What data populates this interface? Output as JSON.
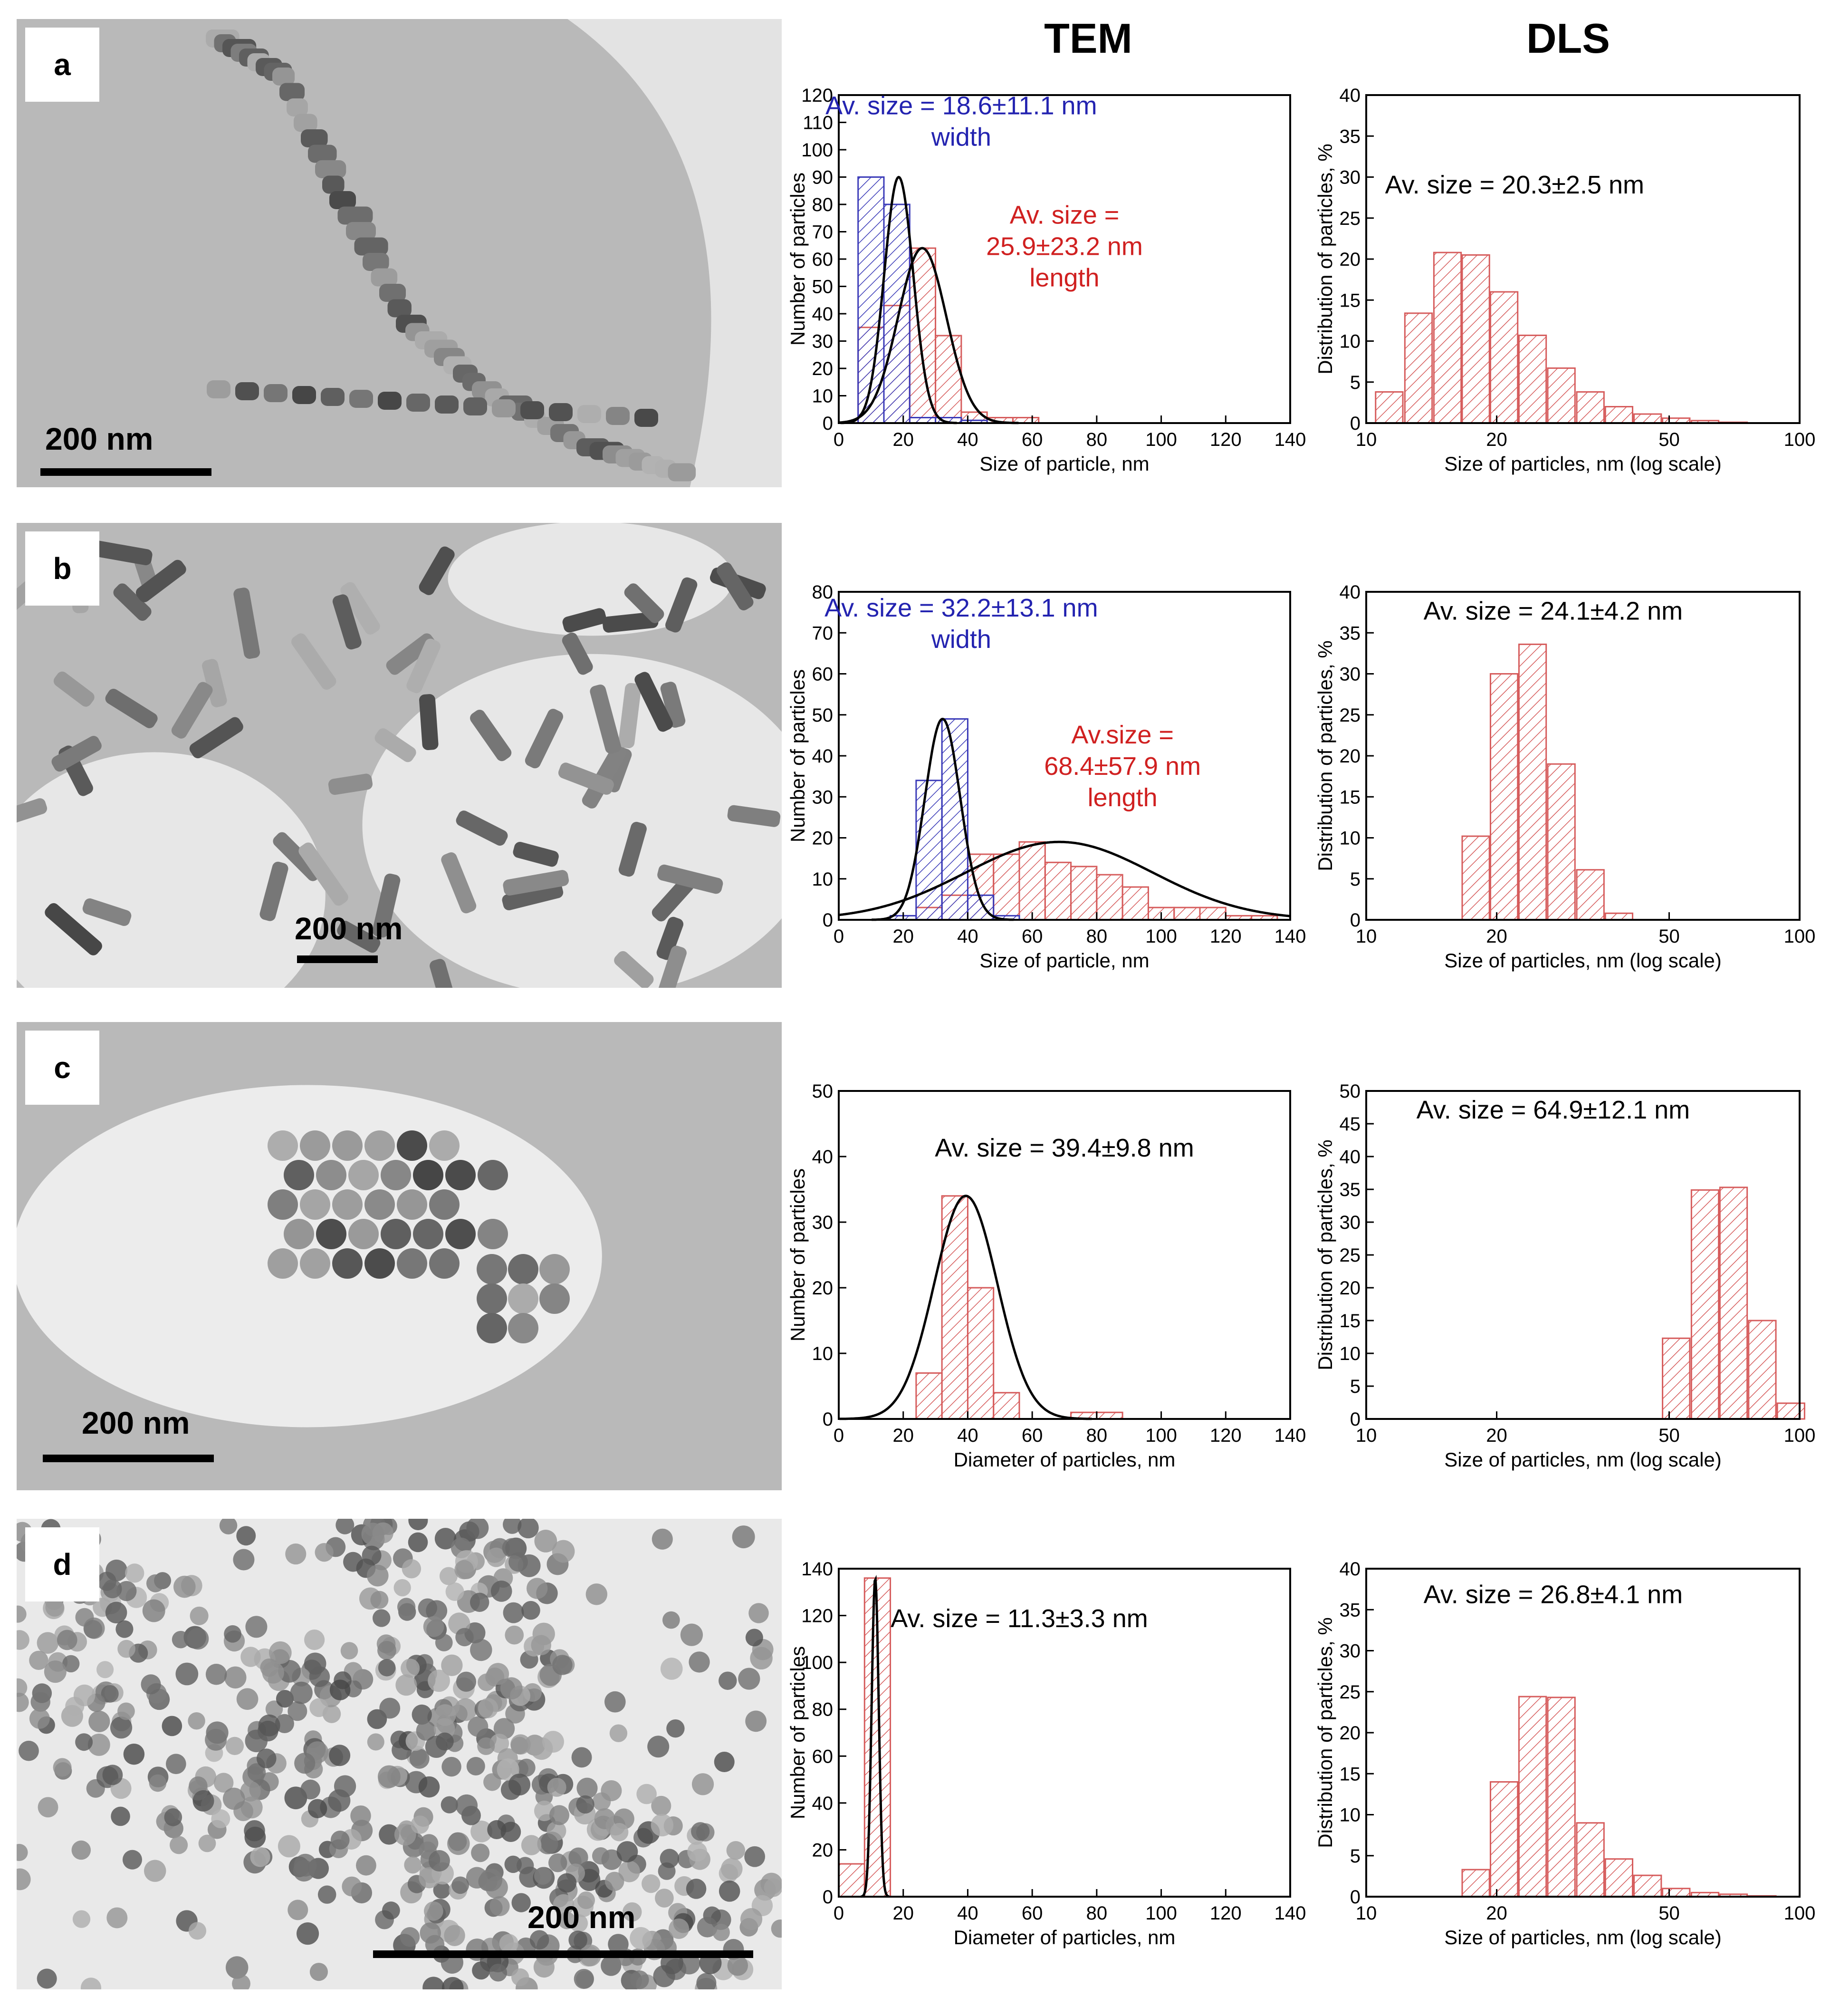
{
  "headers": {
    "tem": "TEM",
    "dls": "DLS"
  },
  "colors": {
    "tem_bar": "#d65c5c",
    "width_bar": "#3a3ab8",
    "annot_blue": "#2323b0",
    "annot_red": "#d02020",
    "fit": "#000000"
  },
  "panels": [
    {
      "label": "a",
      "scale_text": "200 nm"
    },
    {
      "label": "b",
      "scale_text": "200 nm"
    },
    {
      "label": "c",
      "scale_text": "200 nm"
    },
    {
      "label": "d",
      "scale_text": "200 nm"
    }
  ],
  "chart_data": [
    {
      "id": "a-tem",
      "type": "bar",
      "xscale": "linear",
      "xlim": [
        0,
        140
      ],
      "ylim": [
        0,
        120
      ],
      "xticks": [
        0,
        20,
        40,
        60,
        80,
        100,
        120,
        140
      ],
      "yticks": [
        0,
        10,
        20,
        30,
        40,
        50,
        60,
        70,
        80,
        90,
        100,
        110,
        120
      ],
      "xlabel": "Size of particle, nm",
      "ylabel": "Number of particles",
      "series": [
        {
          "name": "length",
          "color": "red",
          "bin_width": 8,
          "x": [
            10,
            18,
            26,
            34,
            42,
            50,
            58
          ],
          "values": [
            35,
            43,
            64,
            32,
            4,
            2,
            2
          ]
        },
        {
          "name": "width",
          "color": "blue",
          "bin_width": 8,
          "x": [
            10,
            18,
            26,
            34,
            42
          ],
          "values": [
            90,
            80,
            2,
            2,
            1
          ]
        }
      ],
      "fits": [
        {
          "mean": 18.6,
          "sd": 4.5,
          "amp": 90
        },
        {
          "mean": 25.9,
          "sd": 7.5,
          "amp": 64
        }
      ],
      "annotations": [
        {
          "lines": [
            "Av. size = 18.6±11.1 nm",
            "width"
          ],
          "color": "blue",
          "x": 38,
          "y": 113
        },
        {
          "lines": [
            "Av. size =",
            "25.9±23.2 nm",
            "length"
          ],
          "color": "red",
          "x": 70,
          "y": 73
        }
      ]
    },
    {
      "id": "a-dls",
      "type": "bar",
      "xscale": "log",
      "xlim": [
        10,
        100
      ],
      "ylim": [
        0,
        40
      ],
      "xticks": [
        10,
        20,
        50,
        100
      ],
      "yticks": [
        0,
        5,
        10,
        15,
        20,
        25,
        30,
        35,
        40
      ],
      "xlabel": "Size of particles, nm (log scale)",
      "ylabel": "Distribution of particles, %",
      "series": [
        {
          "name": "DLS",
          "color": "red",
          "x": [
            11.3,
            13.2,
            15.4,
            17.9,
            20.8,
            24.2,
            28.2,
            32.9,
            38.3,
            44.6,
            51.9,
            60.5,
            70.4
          ],
          "values": [
            3.8,
            13.4,
            20.8,
            20.5,
            16.0,
            10.7,
            6.7,
            3.8,
            2.0,
            1.1,
            0.6,
            0.3,
            0.1
          ]
        }
      ],
      "annotations": [
        {
          "lines": [
            "Av. size = 20.3±2.5 nm"
          ],
          "color": "black",
          "x": 22,
          "y": 28
        }
      ]
    },
    {
      "id": "b-tem",
      "type": "bar",
      "xscale": "linear",
      "xlim": [
        0,
        140
      ],
      "ylim": [
        0,
        80
      ],
      "xticks": [
        0,
        20,
        40,
        60,
        80,
        100,
        120,
        140
      ],
      "yticks": [
        0,
        10,
        20,
        30,
        40,
        50,
        60,
        70,
        80
      ],
      "xlabel": "Size of particle, nm",
      "ylabel": "Number of particles",
      "series": [
        {
          "name": "length",
          "color": "red",
          "bin_width": 8,
          "x": [
            28,
            36,
            44,
            52,
            60,
            68,
            76,
            84,
            92,
            100,
            108,
            116,
            124,
            132
          ],
          "values": [
            3,
            6,
            16,
            16,
            19,
            14,
            13,
            11,
            8,
            3,
            3,
            3,
            1,
            1
          ]
        },
        {
          "name": "width",
          "color": "blue",
          "bin_width": 8,
          "x": [
            20,
            28,
            36,
            44,
            52
          ],
          "values": [
            1,
            34,
            49,
            6,
            1
          ]
        }
      ],
      "fits": [
        {
          "mean": 32.2,
          "sd": 5.5,
          "amp": 49
        },
        {
          "mean": 68.4,
          "sd": 29,
          "amp": 19
        }
      ],
      "annotations": [
        {
          "lines": [
            "Av. size = 32.2±13.1 nm",
            "width"
          ],
          "color": "blue",
          "x": 38,
          "y": 74
        },
        {
          "lines": [
            "Av.size =",
            "68.4±57.9 nm",
            "length"
          ],
          "color": "red",
          "x": 88,
          "y": 43
        }
      ]
    },
    {
      "id": "b-dls",
      "type": "bar",
      "xscale": "log",
      "xlim": [
        10,
        100
      ],
      "ylim": [
        0,
        40
      ],
      "xticks": [
        10,
        20,
        50,
        100
      ],
      "yticks": [
        0,
        5,
        10,
        15,
        20,
        25,
        30,
        35,
        40
      ],
      "xlabel": "Size of particles, nm (log scale)",
      "ylabel": "Distribution of particles, %",
      "series": [
        {
          "name": "DLS",
          "color": "red",
          "x": [
            17.9,
            20.8,
            24.2,
            28.2,
            32.9,
            38.3
          ],
          "values": [
            10.2,
            30.0,
            33.6,
            19.0,
            6.1,
            0.8
          ]
        }
      ],
      "annotations": [
        {
          "lines": [
            "Av. size = 24.1±4.2 nm"
          ],
          "color": "black",
          "x": 27,
          "y": 36.6
        }
      ]
    },
    {
      "id": "c-tem",
      "type": "bar",
      "xscale": "linear",
      "xlim": [
        0,
        140
      ],
      "ylim": [
        0,
        50
      ],
      "xticks": [
        0,
        20,
        40,
        60,
        80,
        100,
        120,
        140
      ],
      "yticks": [
        0,
        10,
        20,
        30,
        40,
        50
      ],
      "xlabel": "Diameter of particles, nm",
      "ylabel": "Number of particles",
      "series": [
        {
          "name": "diameter",
          "color": "red",
          "bin_width": 8,
          "x": [
            20,
            28,
            36,
            44,
            52,
            60,
            68,
            76,
            84
          ],
          "values": [
            0,
            7,
            34,
            20,
            4,
            0,
            0,
            1,
            1
          ]
        }
      ],
      "fits": [
        {
          "mean": 39.4,
          "sd": 9.8,
          "amp": 34
        }
      ],
      "annotations": [
        {
          "lines": [
            "Av. size = 39.4±9.8 nm"
          ],
          "color": "black",
          "x": 70,
          "y": 40
        }
      ]
    },
    {
      "id": "c-dls",
      "type": "bar",
      "xscale": "log",
      "xlim": [
        10,
        100
      ],
      "ylim": [
        0,
        50
      ],
      "xticks": [
        10,
        20,
        50,
        100
      ],
      "yticks": [
        0,
        5,
        10,
        15,
        20,
        25,
        30,
        35,
        40,
        45,
        50
      ],
      "xlabel": "Size of particles, nm (log scale)",
      "ylabel": "Distribution of particles, %",
      "series": [
        {
          "name": "DLS",
          "color": "red",
          "x": [
            51.9,
            60.5,
            70.4,
            82.0,
            95.5
          ],
          "values": [
            12.3,
            34.9,
            35.3,
            15.0,
            2.4
          ]
        }
      ],
      "annotations": [
        {
          "lines": [
            "Av. size = 64.9±12.1 nm"
          ],
          "color": "black",
          "x": 27,
          "y": 45.8
        }
      ]
    },
    {
      "id": "d-tem",
      "type": "bar",
      "xscale": "linear",
      "xlim": [
        0,
        140
      ],
      "ylim": [
        0,
        140
      ],
      "xticks": [
        0,
        20,
        40,
        60,
        80,
        100,
        120,
        140
      ],
      "yticks": [
        0,
        20,
        40,
        60,
        80,
        100,
        120,
        140
      ],
      "xlabel": "Diameter of particles, nm",
      "ylabel": "Number of particles",
      "series": [
        {
          "name": "diameter",
          "color": "red",
          "bin_width": 8,
          "x": [
            4,
            12
          ],
          "values": [
            14,
            136
          ]
        }
      ],
      "fits": [
        {
          "mean": 11.3,
          "sd": 1.1,
          "amp": 136
        }
      ],
      "annotations": [
        {
          "lines": [
            "Av. size = 11.3±3.3 nm"
          ],
          "color": "black",
          "x": 56,
          "y": 115
        }
      ]
    },
    {
      "id": "d-dls",
      "type": "bar",
      "xscale": "log",
      "xlim": [
        10,
        100
      ],
      "ylim": [
        0,
        40
      ],
      "xticks": [
        10,
        20,
        50,
        100
      ],
      "yticks": [
        0,
        5,
        10,
        15,
        20,
        25,
        30,
        35,
        40
      ],
      "xlabel": "Size of particles, nm (log scale)",
      "ylabel": "Distribution of particles, %",
      "series": [
        {
          "name": "DLS",
          "color": "red",
          "x": [
            17.9,
            20.8,
            24.2,
            28.2,
            32.9,
            38.3,
            44.6,
            51.9,
            60.5,
            70.4,
            82.0
          ],
          "values": [
            3.3,
            14.0,
            24.4,
            24.3,
            9.0,
            4.6,
            2.6,
            1.0,
            0.5,
            0.3,
            0.1
          ]
        }
      ],
      "annotations": [
        {
          "lines": [
            "Av. size = 26.8±4.1 nm"
          ],
          "color": "black",
          "x": 27,
          "y": 35.8
        }
      ]
    }
  ]
}
